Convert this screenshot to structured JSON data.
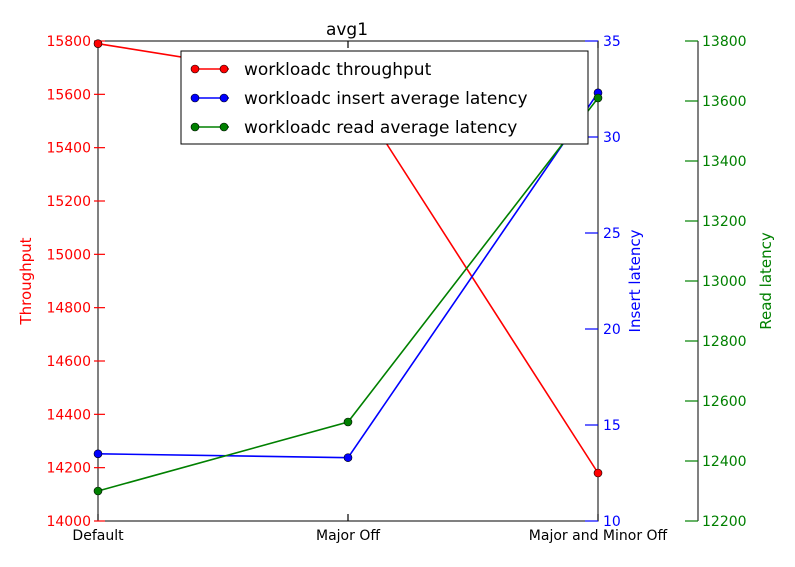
{
  "chart_data": {
    "type": "line",
    "title": "avg1",
    "categories": [
      "Default",
      "Major Off",
      "Major and Minor Off"
    ],
    "axes": {
      "left": {
        "label": "Throughput",
        "color": "#ff0000",
        "ylim": [
          14000,
          15800
        ],
        "ticks": [
          "14000",
          "14200",
          "14400",
          "14600",
          "14800",
          "15000",
          "15200",
          "15400",
          "15600",
          "15800"
        ]
      },
      "right1": {
        "label": "Insert latency",
        "color": "#0000ff",
        "ylim": [
          10,
          35
        ],
        "ticks": [
          "10",
          "15",
          "20",
          "25",
          "30",
          "35"
        ]
      },
      "right2": {
        "label": "Read latency",
        "color": "#008000",
        "ylim": [
          12200,
          13800
        ],
        "ticks": [
          "12200",
          "12400",
          "12600",
          "12800",
          "13000",
          "13200",
          "13400",
          "13600",
          "13800"
        ]
      }
    },
    "series": [
      {
        "name": "workloadc throughput",
        "axis": "left",
        "color": "#ff0000",
        "values": [
          15790,
          15640,
          14180
        ]
      },
      {
        "name": "workloadc insert average latency",
        "axis": "right1",
        "color": "#0000ff",
        "values": [
          13.5,
          13.3,
          32.3
        ]
      },
      {
        "name": "workloadc read average latency",
        "axis": "right2",
        "color": "#008000",
        "values": [
          12300,
          12530,
          13610
        ]
      }
    ],
    "legend_position": "top-center",
    "grid": false
  }
}
